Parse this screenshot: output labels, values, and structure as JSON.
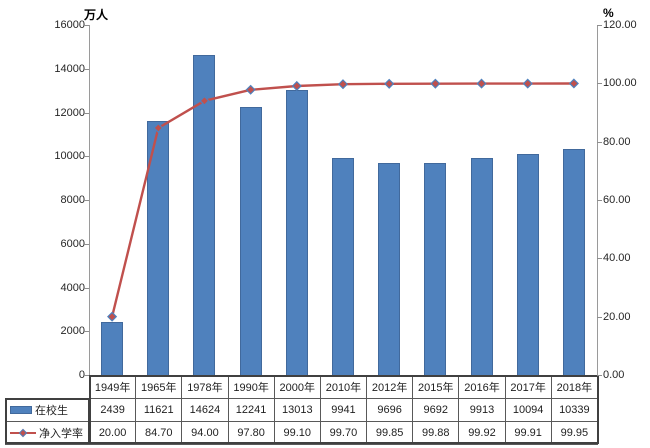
{
  "chart_data": {
    "type": "bar",
    "subtype": "bar+line-combo",
    "title": "",
    "categories": [
      "1949年",
      "1965年",
      "1978年",
      "1990年",
      "2000年",
      "2010年",
      "2012年",
      "2015年",
      "2016年",
      "2017年",
      "2018年"
    ],
    "series": [
      {
        "name": "在校生",
        "type": "bar",
        "axis": "left",
        "color": "#4f81bd",
        "values": [
          2439,
          11621,
          14624,
          12241,
          13013,
          9941,
          9696,
          9692,
          9913,
          10094,
          10339
        ]
      },
      {
        "name": "净入学率",
        "type": "line",
        "axis": "right",
        "color": "#c0504d",
        "marker": "diamond",
        "marker_border_color": "#4f81bd",
        "values": [
          20.0,
          84.7,
          94.0,
          97.8,
          99.1,
          99.7,
          99.85,
          99.88,
          99.92,
          99.91,
          99.95
        ]
      }
    ],
    "left_axis": {
      "title": "万人",
      "min": 0,
      "max": 16000,
      "tick_labels": [
        "0",
        "2000",
        "4000",
        "6000",
        "8000",
        "10000",
        "12000",
        "14000",
        "16000"
      ]
    },
    "right_axis": {
      "title": "%",
      "min": 0,
      "max": 120,
      "tick_labels": [
        "0.00",
        "20.00",
        "40.00",
        "60.00",
        "80.00",
        "100.00",
        "120.00"
      ]
    },
    "grid": false,
    "legend_position": "data-table-left"
  },
  "data_table": {
    "column_headers": [
      "1949年",
      "1965年",
      "1978年",
      "1990年",
      "2000年",
      "2010年",
      "2012年",
      "2015年",
      "2016年",
      "2017年",
      "2018年"
    ],
    "rows": [
      {
        "label": "在校生",
        "swatch": "bar-swatch",
        "values": [
          "2439",
          "11621",
          "14624",
          "12241",
          "13013",
          "9941",
          "9696",
          "9692",
          "9913",
          "10094",
          "10339"
        ]
      },
      {
        "label": "净入学率",
        "swatch": "line-swatch",
        "values": [
          "20.00",
          "84.70",
          "94.00",
          "97.80",
          "99.10",
          "99.70",
          "99.85",
          "99.88",
          "99.92",
          "99.91",
          "99.95"
        ]
      }
    ]
  },
  "colors": {
    "bar": "#4f81bd",
    "bar_border": "#41699c",
    "line": "#c0504d",
    "marker_border": "#4f81bd",
    "axis_line": "#9a9a9a",
    "table_border": "#595959",
    "outer_frame": "#404040",
    "tick_text": "#262626"
  }
}
